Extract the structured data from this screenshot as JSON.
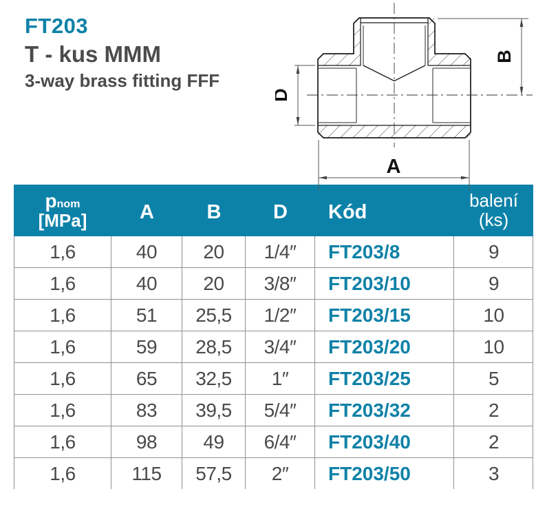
{
  "colors": {
    "accent": "#0f81a7",
    "table_header_bg": "#0d82a9",
    "body_text": "#4a4a4b",
    "grid_line": "#909090",
    "drawing_line": "#1a1a1a"
  },
  "title_block": {
    "code": "FT203",
    "name_cz": "T - kus MMM",
    "name_en": "3-way brass fitting FFF"
  },
  "drawing": {
    "type": "technical-section-view-of-3-way-tee-fitting",
    "dim_labels": {
      "a": "A",
      "b": "B",
      "d": "D"
    }
  },
  "table": {
    "header": {
      "pressure_symbol": "p",
      "pressure_sub": "nom",
      "pressure_unit": "[MPa]",
      "col_a": "A",
      "col_b": "B",
      "col_d": "D",
      "col_code": "Kód",
      "packing_line1": "balení",
      "packing_line2": "(ks)"
    },
    "rows": [
      {
        "pnom": "1,6",
        "a": "40",
        "b": "20",
        "d": "1/4″",
        "kod": "FT203/8",
        "baleni": "9"
      },
      {
        "pnom": "1,6",
        "a": "40",
        "b": "20",
        "d": "3/8″",
        "kod": "FT203/10",
        "baleni": "9"
      },
      {
        "pnom": "1,6",
        "a": "51",
        "b": "25,5",
        "d": "1/2″",
        "kod": "FT203/15",
        "baleni": "10"
      },
      {
        "pnom": "1,6",
        "a": "59",
        "b": "28,5",
        "d": "3/4″",
        "kod": "FT203/20",
        "baleni": "10"
      },
      {
        "pnom": "1,6",
        "a": "65",
        "b": "32,5",
        "d": "1″",
        "kod": "FT203/25",
        "baleni": "5"
      },
      {
        "pnom": "1,6",
        "a": "83",
        "b": "39,5",
        "d": "5/4″",
        "kod": "FT203/32",
        "baleni": "2"
      },
      {
        "pnom": "1,6",
        "a": "98",
        "b": "49",
        "d": "6/4″",
        "kod": "FT203/40",
        "baleni": "2"
      },
      {
        "pnom": "1,6",
        "a": "115",
        "b": "57,5",
        "d": "2″",
        "kod": "FT203/50",
        "baleni": "3"
      }
    ]
  }
}
